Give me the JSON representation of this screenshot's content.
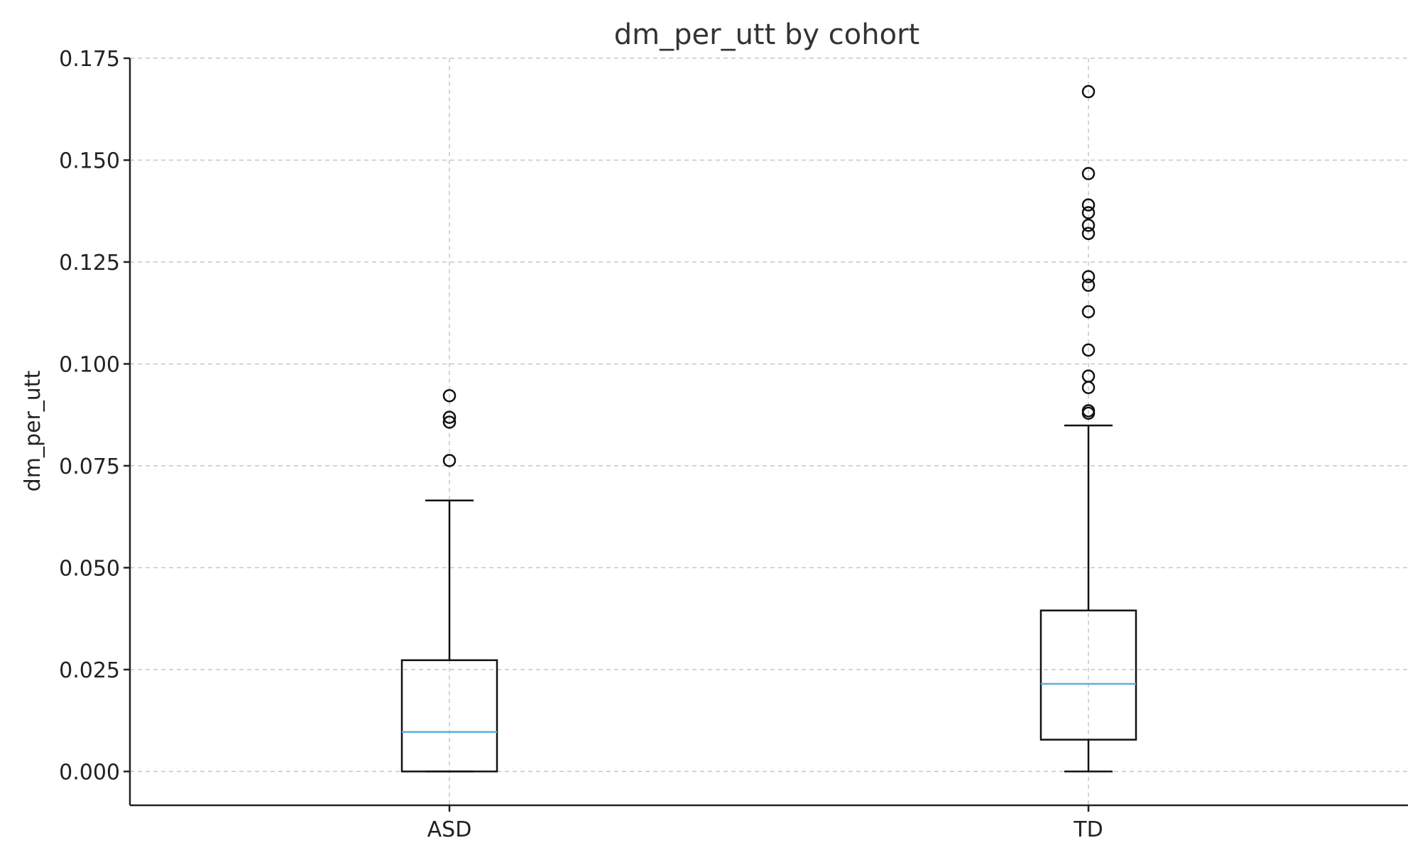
{
  "chart_data": {
    "type": "box",
    "title": "dm_per_utt by cohort",
    "xlabel": "",
    "ylabel": "dm_per_utt",
    "ylim": [
      -0.0083,
      0.175
    ],
    "yticks": [
      0.0,
      0.025,
      0.05,
      0.075,
      0.1,
      0.125,
      0.15,
      0.175
    ],
    "ytick_labels": [
      "0.000",
      "0.025",
      "0.050",
      "0.075",
      "0.100",
      "0.125",
      "0.150",
      "0.175"
    ],
    "grid": true,
    "categories": [
      "ASD",
      "TD"
    ],
    "median_color": "#5dade2",
    "box_color": "#111111",
    "boxes": [
      {
        "category": "ASD",
        "whisker_low": 0.0,
        "q1": 0.0,
        "median": 0.0097,
        "q3": 0.0273,
        "whisker_high": 0.0665,
        "outliers": [
          0.0763,
          0.0857,
          0.0869,
          0.0922
        ]
      },
      {
        "category": "TD",
        "whisker_low": 0.0,
        "q1": 0.0078,
        "median": 0.0215,
        "q3": 0.0395,
        "whisker_high": 0.0849,
        "outliers": [
          0.0879,
          0.0885,
          0.0942,
          0.097,
          0.1034,
          0.1128,
          0.1193,
          0.1214,
          0.132,
          0.134,
          0.1371,
          0.139,
          0.1467,
          0.1668
        ]
      }
    ]
  }
}
